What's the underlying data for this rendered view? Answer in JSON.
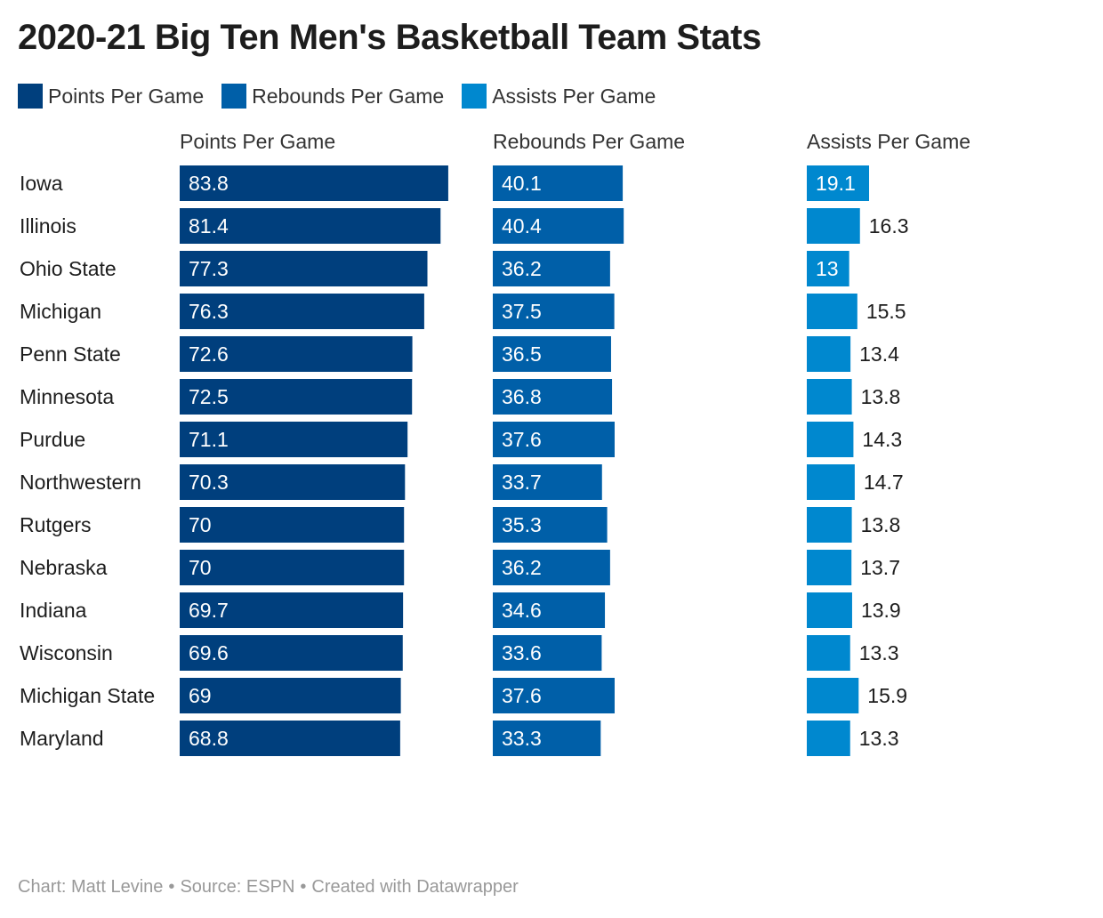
{
  "title": "2020-21 Big Ten Men's Basketball Team Stats",
  "footer": {
    "chart_credit": "Chart: Matt Levine",
    "source": "Source: ESPN",
    "created_with": "Created with Datawrapper"
  },
  "chart_data": {
    "type": "bar",
    "orientation": "horizontal",
    "layout": "small-multiples",
    "legend_position": "top-left",
    "grid": false,
    "categories": [
      "Iowa",
      "Illinois",
      "Ohio State",
      "Michigan",
      "Penn State",
      "Minnesota",
      "Purdue",
      "Northwestern",
      "Rutgers",
      "Nebraska",
      "Indiana",
      "Wisconsin",
      "Michigan State",
      "Maryland"
    ],
    "series": [
      {
        "name": "Points Per Game",
        "color": "#003f7d",
        "values": [
          83.8,
          81.4,
          77.3,
          76.3,
          72.6,
          72.5,
          71.1,
          70.3,
          70,
          70,
          69.7,
          69.6,
          69,
          68.8
        ]
      },
      {
        "name": "Rebounds Per Game",
        "color": "#005fa8",
        "values": [
          40.1,
          40.4,
          36.2,
          37.5,
          36.5,
          36.8,
          37.6,
          33.7,
          35.3,
          36.2,
          34.6,
          33.6,
          37.6,
          33.3
        ]
      },
      {
        "name": "Assists Per Game",
        "color": "#0088cf",
        "values": [
          19.1,
          16.3,
          13,
          15.5,
          13.4,
          13.8,
          14.3,
          14.7,
          13.8,
          13.7,
          13.9,
          13.3,
          15.9,
          13.3
        ]
      }
    ]
  }
}
